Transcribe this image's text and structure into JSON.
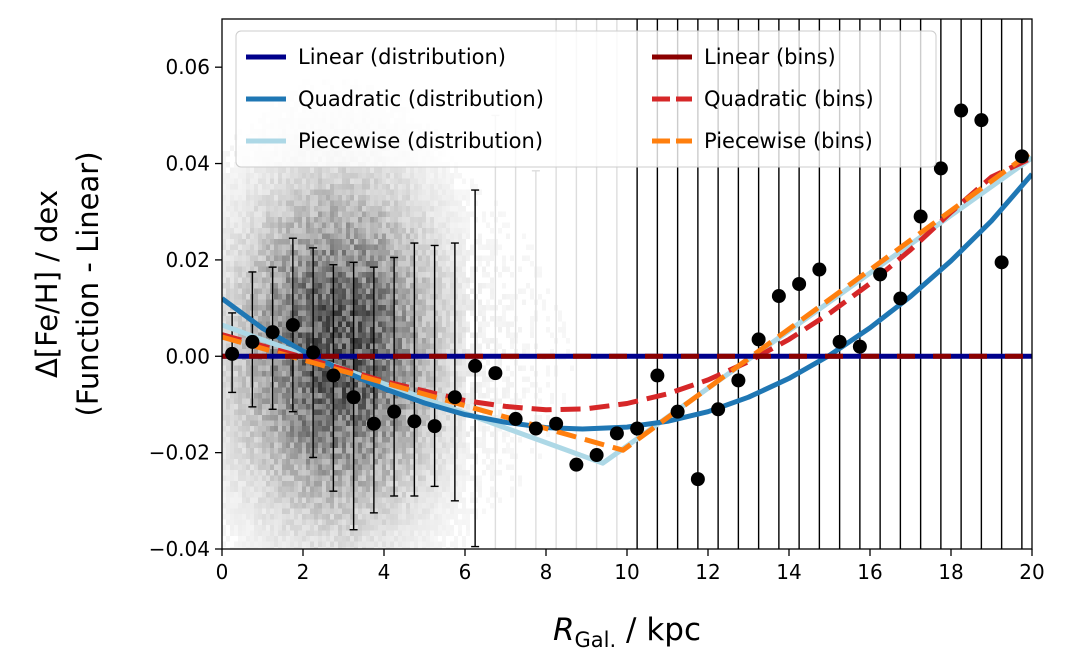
{
  "chart_data": {
    "type": "scatter",
    "xlabel_main": "R",
    "xlabel_sub": "Gal.",
    "xlabel_unit": " / kpc",
    "ylabel_line1": "Δ[Fe/H] / dex",
    "ylabel_line2": "(Function - Linear)",
    "xlim": [
      0,
      20
    ],
    "ylim": [
      -0.04,
      0.07
    ],
    "xticks": [
      0,
      2,
      4,
      6,
      8,
      10,
      12,
      14,
      16,
      18,
      20
    ],
    "yticks": [
      -0.04,
      -0.02,
      0.0,
      0.02,
      0.04,
      0.06
    ],
    "xtick_labels": [
      "0",
      "2",
      "4",
      "6",
      "8",
      "10",
      "12",
      "14",
      "16",
      "18",
      "20"
    ],
    "ytick_labels": [
      "−0.04",
      "−0.02",
      "0.00",
      "0.02",
      "0.04",
      "0.06"
    ],
    "grid": false,
    "legend": {
      "placement": "top",
      "columns": 2
    },
    "series": [
      {
        "name": "Linear (distribution)",
        "color": "#00008b",
        "style": "solid",
        "x": [
          0,
          20
        ],
        "y": [
          0,
          0
        ]
      },
      {
        "name": "Quadratic (distribution)",
        "color": "#1f77b4",
        "style": "solid",
        "x": [
          0,
          1,
          2,
          3,
          4,
          5,
          6,
          7,
          8,
          8.9,
          10,
          11,
          12,
          13,
          14,
          15,
          16,
          17,
          18,
          19,
          20
        ],
        "y": [
          0.012,
          0.0058,
          0.0011,
          -0.0031,
          -0.0067,
          -0.0097,
          -0.0121,
          -0.0137,
          -0.0148,
          -0.0151,
          -0.0147,
          -0.0135,
          -0.0115,
          -0.0085,
          -0.0046,
          0.0002,
          0.0059,
          0.0124,
          0.0198,
          0.0281,
          0.0378
        ]
      },
      {
        "name": "Piecewise (distribution)",
        "color": "#add8e6",
        "style": "solid",
        "x": [
          0,
          9.4,
          20
        ],
        "y": [
          0.0065,
          -0.0222,
          0.0412
        ]
      },
      {
        "name": "Linear (bins)",
        "color": "#8b0000",
        "style": "solid",
        "x": [
          0,
          20
        ],
        "y": [
          0,
          0
        ]
      },
      {
        "name": "Quadratic (bins)",
        "color": "#d62728",
        "style": "dashed",
        "x": [
          0,
          2,
          4,
          6,
          7,
          8,
          9,
          10,
          11,
          12,
          13,
          14,
          15,
          16,
          17,
          18,
          19,
          20
        ],
        "y": [
          0.0045,
          -0.0002,
          -0.0052,
          -0.0092,
          -0.0104,
          -0.0111,
          -0.0109,
          -0.0098,
          -0.0078,
          -0.0049,
          -0.0011,
          0.0035,
          0.0089,
          0.0151,
          0.0221,
          0.0299,
          0.0372,
          0.0412
        ]
      },
      {
        "name": "Piecewise (bins)",
        "color": "#ff7f0e",
        "style": "dashed",
        "x": [
          0,
          9.9,
          20
        ],
        "y": [
          0.004,
          -0.0195,
          0.0425
        ]
      }
    ],
    "binned_points": {
      "color": "#000000",
      "x": [
        0.25,
        0.75,
        1.25,
        1.75,
        2.25,
        2.75,
        3.25,
        3.75,
        4.25,
        4.75,
        5.25,
        5.75,
        6.25,
        6.75,
        7.25,
        7.75,
        8.25,
        8.75,
        9.25,
        9.75,
        10.25,
        10.75,
        11.25,
        11.75,
        12.25,
        12.75,
        13.25,
        13.75,
        14.25,
        14.75,
        15.25,
        15.75,
        16.25,
        16.75,
        17.25,
        17.75,
        18.25,
        18.75,
        19.25,
        19.75
      ],
      "y": [
        0.0005,
        0.003,
        0.005,
        0.0065,
        0.0008,
        -0.004,
        -0.0085,
        -0.014,
        -0.0115,
        -0.0135,
        -0.0145,
        -0.0085,
        -0.002,
        -0.0035,
        -0.013,
        -0.015,
        -0.014,
        -0.0225,
        -0.0205,
        -0.016,
        -0.015,
        -0.004,
        -0.0115,
        -0.0255,
        -0.011,
        -0.005,
        0.0035,
        0.0125,
        0.015,
        0.018,
        0.003,
        0.002,
        0.017,
        0.012,
        0.029,
        0.039,
        0.051,
        0.049,
        0.0195,
        0.0415
      ],
      "err_lo": [
        -0.0075,
        -0.0105,
        -0.011,
        -0.0115,
        -0.021,
        -0.028,
        -0.036,
        -0.0325,
        -0.029,
        -0.029,
        -0.027,
        -0.03,
        -0.0395,
        -0.06,
        -0.06,
        -0.06,
        -0.06,
        -0.06,
        -0.06,
        -0.06,
        -0.06,
        -0.06,
        -0.06,
        -0.06,
        -0.06,
        -0.06,
        -0.06,
        -0.06,
        -0.06,
        -0.06,
        -0.06,
        -0.06,
        -0.06,
        -0.06,
        -0.06,
        -0.06,
        -0.06,
        -0.06,
        -0.06,
        -0.06
      ],
      "err_hi": [
        0.009,
        0.0175,
        0.0185,
        0.0245,
        0.0225,
        0.019,
        0.0195,
        0.0185,
        0.0205,
        0.0235,
        0.023,
        0.0235,
        0.0345,
        0.05,
        0.055,
        0.0385,
        0.09,
        0.09,
        0.09,
        0.09,
        0.09,
        0.09,
        0.09,
        0.09,
        0.09,
        0.09,
        0.09,
        0.09,
        0.09,
        0.09,
        0.09,
        0.09,
        0.09,
        0.09,
        0.09,
        0.09,
        0.09,
        0.09,
        0.09,
        0.09
      ]
    },
    "density_background": {
      "colormap": "gray_r",
      "x_center": 2.8,
      "x_width": 1.6,
      "y_width": 0.022,
      "x_limit": 15
    }
  }
}
